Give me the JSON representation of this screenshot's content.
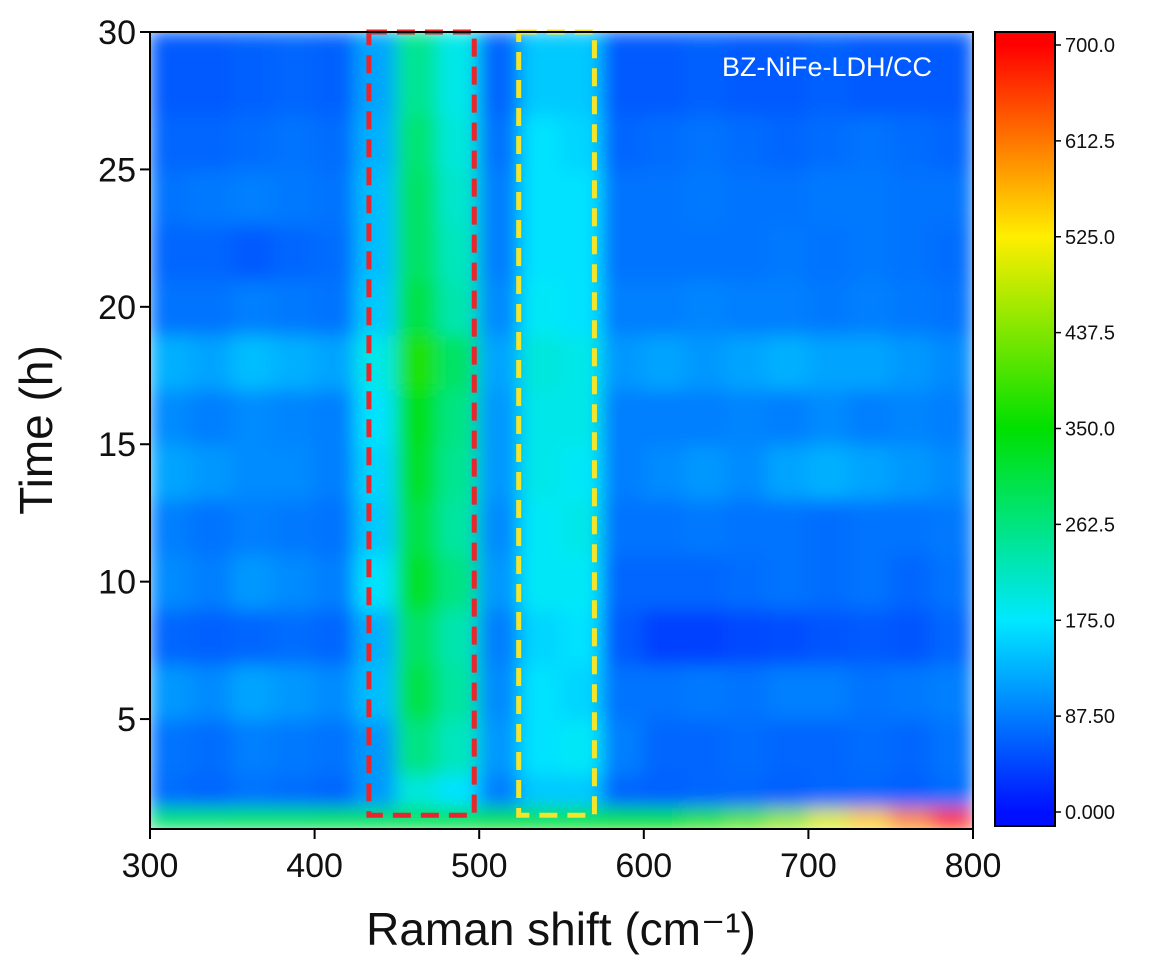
{
  "chart_data": {
    "type": "heatmap",
    "xlabel": "Raman shift (cm⁻¹)",
    "ylabel": "Time (h)",
    "annotation": "BZ-NiFe-LDH/CC",
    "xlim": [
      300,
      800
    ],
    "ylim": [
      1,
      30
    ],
    "xticks": [
      300,
      400,
      500,
      600,
      700,
      800
    ],
    "yticks": [
      5,
      10,
      15,
      20,
      25,
      30
    ],
    "xbins": [
      300,
      325,
      350,
      375,
      400,
      425,
      450,
      475,
      500,
      525,
      550,
      575,
      600,
      625,
      650,
      675,
      700,
      725,
      750,
      775,
      800
    ],
    "ybins": [
      1,
      1.8,
      3,
      5,
      7,
      9,
      11,
      13,
      15,
      17,
      19,
      21,
      23,
      25,
      27,
      30
    ],
    "values": [
      [
        280,
        280,
        290,
        290,
        300,
        300,
        300,
        310,
        320,
        320,
        330,
        340,
        350,
        380,
        410,
        450,
        500,
        550,
        600,
        660
      ],
      [
        75,
        70,
        80,
        75,
        70,
        110,
        200,
        170,
        90,
        150,
        150,
        70,
        65,
        70,
        70,
        65,
        70,
        70,
        65,
        75
      ],
      [
        80,
        75,
        90,
        85,
        80,
        110,
        260,
        220,
        110,
        170,
        180,
        90,
        70,
        70,
        75,
        70,
        70,
        75,
        70,
        80
      ],
      [
        110,
        100,
        120,
        110,
        100,
        140,
        300,
        240,
        100,
        170,
        160,
        80,
        80,
        85,
        80,
        90,
        90,
        80,
        85,
        90
      ],
      [
        70,
        65,
        70,
        75,
        70,
        130,
        280,
        230,
        90,
        160,
        170,
        60,
        40,
        40,
        45,
        50,
        55,
        60,
        55,
        70
      ],
      [
        100,
        90,
        110,
        100,
        90,
        170,
        320,
        260,
        110,
        180,
        180,
        70,
        70,
        70,
        75,
        80,
        75,
        80,
        70,
        80
      ],
      [
        90,
        80,
        90,
        85,
        80,
        150,
        300,
        240,
        100,
        180,
        190,
        80,
        80,
        85,
        80,
        80,
        75,
        80,
        80,
        85
      ],
      [
        120,
        110,
        100,
        100,
        90,
        160,
        320,
        250,
        110,
        190,
        180,
        90,
        100,
        110,
        100,
        120,
        130,
        120,
        110,
        100
      ],
      [
        100,
        90,
        100,
        95,
        90,
        170,
        330,
        260,
        110,
        190,
        190,
        90,
        90,
        90,
        95,
        90,
        100,
        90,
        95,
        90
      ],
      [
        130,
        120,
        140,
        130,
        120,
        190,
        370,
        280,
        120,
        200,
        190,
        110,
        120,
        110,
        120,
        130,
        120,
        120,
        110,
        100
      ],
      [
        80,
        80,
        90,
        85,
        80,
        150,
        300,
        230,
        100,
        180,
        170,
        90,
        90,
        95,
        90,
        90,
        85,
        90,
        85,
        80
      ],
      [
        70,
        70,
        60,
        70,
        75,
        140,
        280,
        220,
        90,
        170,
        170,
        80,
        80,
        80,
        80,
        85,
        80,
        85,
        80,
        75
      ],
      [
        80,
        85,
        90,
        85,
        80,
        140,
        280,
        210,
        90,
        170,
        170,
        80,
        80,
        85,
        80,
        80,
        85,
        85,
        80,
        80
      ],
      [
        70,
        70,
        75,
        80,
        75,
        130,
        270,
        200,
        80,
        170,
        160,
        70,
        75,
        80,
        75,
        70,
        75,
        80,
        75,
        70
      ],
      [
        60,
        60,
        65,
        70,
        65,
        120,
        250,
        190,
        70,
        150,
        150,
        60,
        60,
        65,
        60,
        60,
        65,
        60,
        60,
        60
      ]
    ],
    "zlim": [
      0,
      700
    ],
    "zticks": [
      {
        "value": 0,
        "label": "0.000"
      },
      {
        "value": 87.5,
        "label": "87.50"
      },
      {
        "value": 175,
        "label": "175.0"
      },
      {
        "value": 262.5,
        "label": "262.5"
      },
      {
        "value": 350,
        "label": "350.0"
      },
      {
        "value": 437.5,
        "label": "437.5"
      },
      {
        "value": 525,
        "label": "525.0"
      },
      {
        "value": 612.5,
        "label": "612.5"
      },
      {
        "value": 700,
        "label": "700.0"
      }
    ],
    "colormap": [
      "#0010ff",
      "#00e8ff",
      "#00e000",
      "#ffee00",
      "#ff0000"
    ],
    "regions": [
      {
        "x": [
          433,
          497
        ],
        "y": [
          1.5,
          30
        ],
        "color": "#e8262b"
      },
      {
        "x": [
          524,
          570
        ],
        "y": [
          1.5,
          30
        ],
        "color": "#f5e52a"
      }
    ]
  }
}
